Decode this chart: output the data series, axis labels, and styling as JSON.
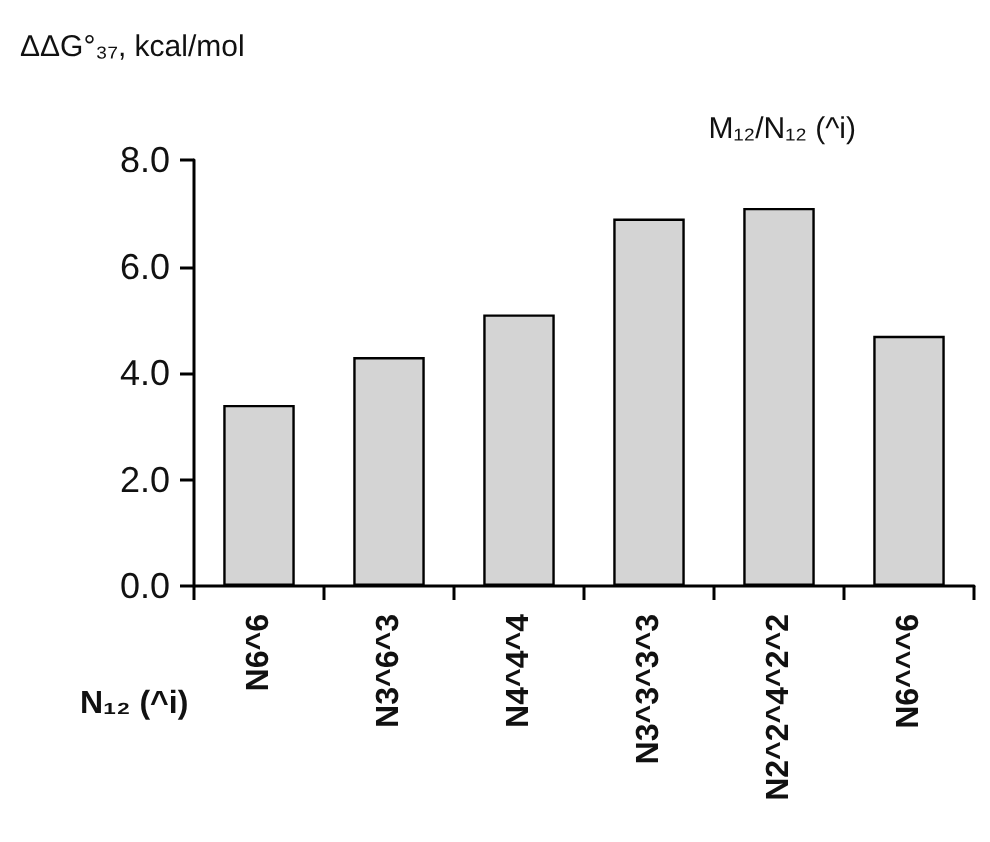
{
  "chart_data": {
    "type": "bar",
    "title": "M₁₂/N₁₂ (^i)",
    "xlabel": "N₁₂ (^i)",
    "ylabel": "ΔΔG°₃₇, kcal/mol",
    "categories": [
      "N6^6",
      "N3^6^3",
      "N4^4^4",
      "N3^3^3^3",
      "N2^2^4^2^2",
      "N6^^^6"
    ],
    "values": [
      3.4,
      4.3,
      5.1,
      6.9,
      7.1,
      4.7
    ],
    "color": "#d4d4d4",
    "ylim": [
      0,
      8
    ],
    "yticks": [
      {
        "value": 0,
        "label": "0.0"
      },
      {
        "value": 2,
        "label": "2.0"
      },
      {
        "value": 4,
        "label": "4.0"
      },
      {
        "value": 6,
        "label": "6.0"
      },
      {
        "value": 8,
        "label": "8.0"
      }
    ],
    "grid": false
  }
}
